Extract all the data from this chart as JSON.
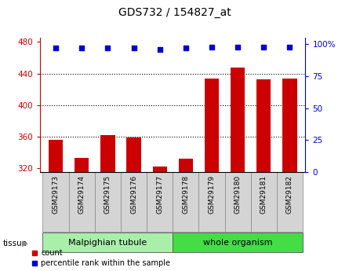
{
  "title": "GDS732 / 154827_at",
  "categories": [
    "GSM29173",
    "GSM29174",
    "GSM29175",
    "GSM29176",
    "GSM29177",
    "GSM29178",
    "GSM29179",
    "GSM29180",
    "GSM29181",
    "GSM29182"
  ],
  "bar_values": [
    356,
    333,
    362,
    359,
    322,
    332,
    434,
    447,
    433,
    434
  ],
  "percentile_values": [
    97,
    97,
    97,
    97,
    96,
    97,
    98,
    98,
    98,
    98
  ],
  "bar_color": "#cc0000",
  "percentile_color": "#0000cc",
  "ylim_left": [
    315,
    485
  ],
  "ylim_right": [
    0,
    105
  ],
  "yticks_left": [
    320,
    360,
    400,
    440,
    480
  ],
  "yticks_right": [
    0,
    25,
    50,
    75,
    100
  ],
  "yticklabels_right": [
    "0",
    "25",
    "50",
    "75",
    "100%"
  ],
  "tissue_groups": [
    {
      "label": "Malpighian tubule",
      "start": 0,
      "end": 4,
      "color": "#aaeeaa"
    },
    {
      "label": "whole organism",
      "start": 5,
      "end": 9,
      "color": "#44dd44"
    }
  ],
  "tissue_label": "tissue",
  "legend_count_label": "count",
  "legend_percentile_label": "percentile rank within the sample",
  "tick_label_color_left": "#cc0000",
  "tick_label_color_right": "#0000cc",
  "background_color": "#ffffff",
  "bar_bottom": 315,
  "xtick_bg_color": "#d4d4d4",
  "gridlines": [
    360,
    400,
    440
  ]
}
